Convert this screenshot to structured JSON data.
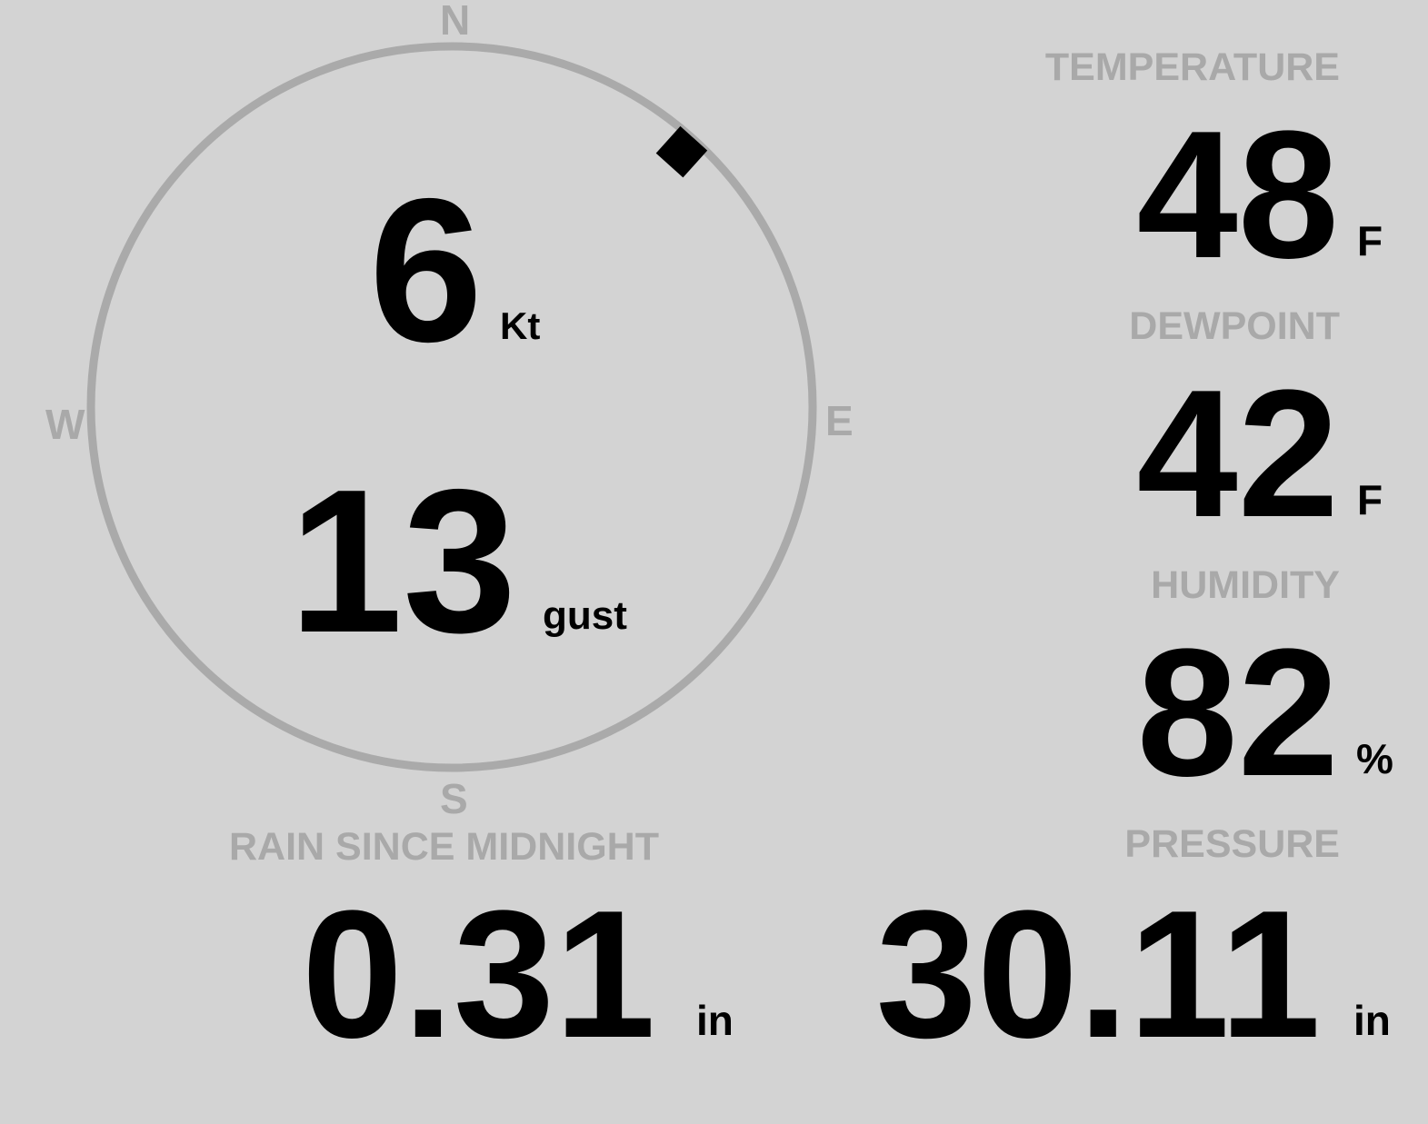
{
  "colors": {
    "background": "#d3d3d3",
    "label": "#a9a9a9",
    "value": "#000000",
    "compass_ring": "#aaaaaa",
    "direction_marker": "#000000"
  },
  "wind": {
    "cardinals": {
      "n": "N",
      "e": "E",
      "s": "S",
      "w": "W"
    },
    "direction_degrees": 42,
    "speed": "6",
    "speed_unit": "Kt",
    "gust": "13",
    "gust_unit": "gust"
  },
  "temperature": {
    "label": "TEMPERATURE",
    "value": "48",
    "unit": "F"
  },
  "dewpoint": {
    "label": "DEWPOINT",
    "value": "42",
    "unit": "F"
  },
  "humidity": {
    "label": "HUMIDITY",
    "value": "82",
    "unit": "%"
  },
  "rain": {
    "label": "RAIN SINCE MIDNIGHT",
    "value": "0.31",
    "unit": "in"
  },
  "pressure": {
    "label": "PRESSURE",
    "value": "30.11",
    "unit": "in"
  }
}
